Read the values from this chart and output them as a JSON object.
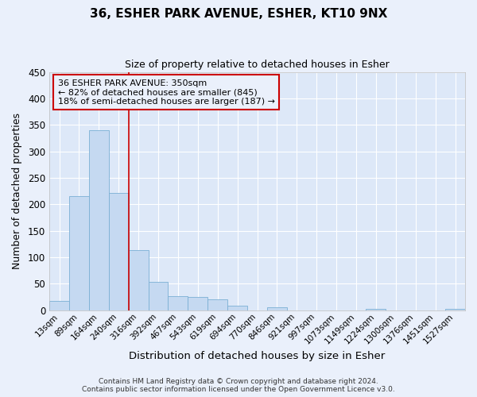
{
  "title": "36, ESHER PARK AVENUE, ESHER, KT10 9NX",
  "subtitle": "Size of property relative to detached houses in Esher",
  "xlabel": "Distribution of detached houses by size in Esher",
  "ylabel": "Number of detached properties",
  "bin_labels": [
    "13sqm",
    "89sqm",
    "164sqm",
    "240sqm",
    "316sqm",
    "392sqm",
    "467sqm",
    "543sqm",
    "619sqm",
    "694sqm",
    "770sqm",
    "846sqm",
    "921sqm",
    "997sqm",
    "1073sqm",
    "1149sqm",
    "1224sqm",
    "1300sqm",
    "1376sqm",
    "1451sqm",
    "1527sqm"
  ],
  "bar_heights": [
    17,
    215,
    340,
    221,
    113,
    53,
    26,
    25,
    20,
    8,
    0,
    5,
    0,
    0,
    0,
    0,
    2,
    0,
    0,
    0,
    2
  ],
  "bar_color": "#c5d9f1",
  "bar_edgecolor": "#7bafd4",
  "vline_x": 3.5,
  "vline_color": "#cc0000",
  "annotation_title": "36 ESHER PARK AVENUE: 350sqm",
  "annotation_line1": "← 82% of detached houses are smaller (845)",
  "annotation_line2": "18% of semi-detached houses are larger (187) →",
  "annotation_box_color": "#cc0000",
  "ylim": [
    0,
    450
  ],
  "yticks": [
    0,
    50,
    100,
    150,
    200,
    250,
    300,
    350,
    400,
    450
  ],
  "footer1": "Contains HM Land Registry data © Crown copyright and database right 2024.",
  "footer2": "Contains public sector information licensed under the Open Government Licence v3.0.",
  "bg_color": "#eaf0fb",
  "grid_color": "#ffffff",
  "plot_bg_color": "#dde8f8"
}
